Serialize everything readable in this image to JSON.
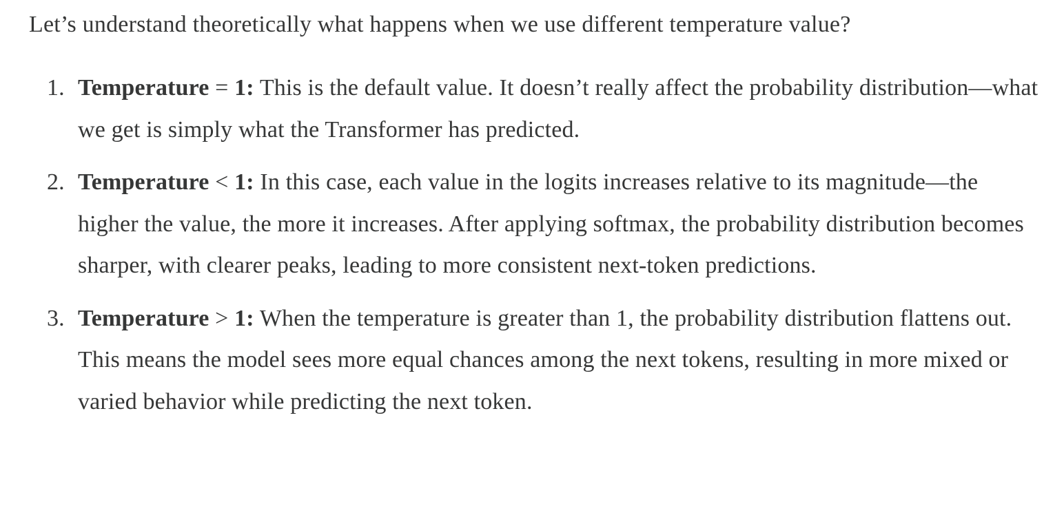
{
  "intro": "Let’s understand theoretically what happens when we use different temperature value?",
  "items": [
    {
      "number": "1.",
      "term": "Temperature",
      "operator": " = ",
      "value": "1",
      "colon": ":",
      "text": " This is the default value. It doesn’t really affect the probability distribution—what we get is simply what the Transformer has predicted."
    },
    {
      "number": "2.",
      "term": "Temperature",
      "operator": " < ",
      "value": "1",
      "colon": ":",
      "text": " In this case, each value in the logits increases relative to its magnitude—the higher the value, the more it increases. After applying softmax, the probability distribution becomes sharper, with clearer peaks, leading to more consistent next-token predictions."
    },
    {
      "number": "3.",
      "term": "Temperature",
      "operator": " > ",
      "value": "1",
      "colon": ":",
      "text": " When the temperature is greater than 1, the probability distribution flattens out. This means the model sees more equal chances among the next tokens, resulting in more mixed or varied behavior while predicting the next token."
    }
  ]
}
